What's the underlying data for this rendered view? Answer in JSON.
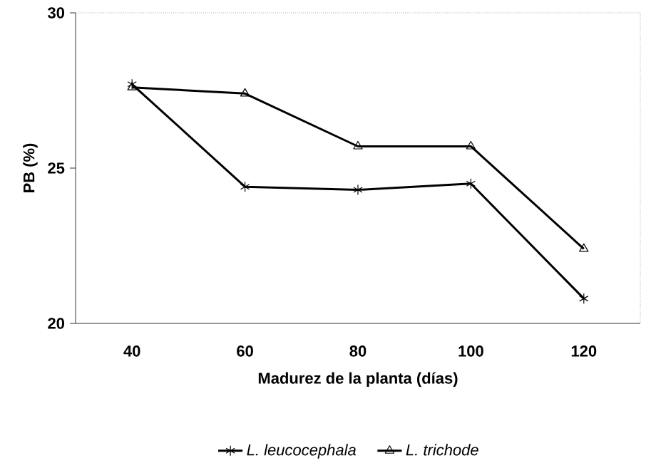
{
  "chart_data": {
    "type": "line",
    "xlabel": "Madurez de la planta (días)",
    "ylabel": "PB (%)",
    "categories": [
      "40",
      "60",
      "80",
      "100",
      "120"
    ],
    "series": [
      {
        "name": "L. leucocephala",
        "color": "#000000",
        "marker": "cross",
        "values": [
          27.7,
          24.4,
          24.3,
          24.5,
          20.8
        ]
      },
      {
        "name": "L. trichode",
        "color": "#000000",
        "marker": "triangle",
        "values": [
          27.6,
          27.4,
          25.7,
          25.7,
          22.4
        ]
      }
    ],
    "ylim": [
      20,
      30
    ],
    "yticks": [
      20,
      25,
      30
    ],
    "grid": false,
    "legend": "bottom",
    "line_style": "solid"
  }
}
